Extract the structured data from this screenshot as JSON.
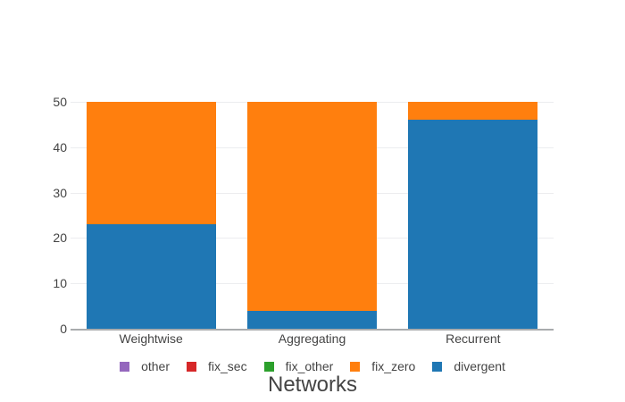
{
  "chart_data": {
    "type": "bar",
    "stacked": true,
    "title": "",
    "xlabel": "Networks",
    "ylabel": "",
    "categories": [
      "Weightwise",
      "Aggregating",
      "Recurrent"
    ],
    "series": [
      {
        "name": "other",
        "color": "#9467bd",
        "values": [
          0,
          0,
          0
        ]
      },
      {
        "name": "fix_sec",
        "color": "#d62728",
        "values": [
          0,
          0,
          0
        ]
      },
      {
        "name": "fix_other",
        "color": "#2ca02c",
        "values": [
          0,
          0,
          0
        ]
      },
      {
        "name": "fix_zero",
        "color": "#ff7f0e",
        "values": [
          27,
          46,
          4
        ]
      },
      {
        "name": "divergent",
        "color": "#1f77b4",
        "values": [
          23,
          4,
          46
        ]
      }
    ],
    "legend_order": [
      "other",
      "fix_sec",
      "fix_other",
      "fix_zero",
      "divergent"
    ],
    "stack_order_bottom_to_top": [
      "divergent",
      "fix_zero",
      "fix_other",
      "fix_sec",
      "other"
    ],
    "yticks": [
      0,
      10,
      20,
      30,
      40,
      50
    ],
    "ylim": [
      0,
      50
    ],
    "grid": true,
    "legend_position": "bottom",
    "colors": {
      "background": "#ffffff",
      "gridline": "#ecedef",
      "axis_line": "#a9abad",
      "text": "#444444"
    }
  }
}
